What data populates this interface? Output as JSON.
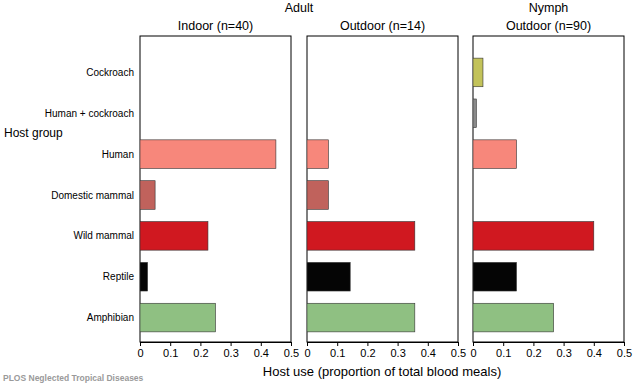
{
  "chart_data": {
    "type": "bar",
    "orientation": "horizontal",
    "ylabel": "Host group",
    "xlabel": "Host use (proportion of total blood meals)",
    "categories": [
      "Cockroach",
      "Human + cockroach",
      "Human",
      "Domestic mammal",
      "Wild mammal",
      "Reptile",
      "Amphibian"
    ],
    "colors": [
      "#c3c35a",
      "#8a8a8a",
      "#f7877b",
      "#c0625c",
      "#d01820",
      "#050505",
      "#8fc082"
    ],
    "xlim": [
      0,
      0.5
    ],
    "xticks": [
      0,
      0.1,
      0.2,
      0.3,
      0.4,
      0.5
    ],
    "stages": [
      {
        "name": "Adult",
        "panels": [
          {
            "title": "Indoor (n=40)",
            "values": [
              0,
              0,
              0.45,
              0.05,
              0.225,
              0.025,
              0.25
            ]
          },
          {
            "title": "Outdoor (n=14)",
            "values": [
              0,
              0,
              0.071,
              0.071,
              0.357,
              0.143,
              0.357
            ]
          }
        ]
      },
      {
        "name": "Nymph",
        "panels": [
          {
            "title": "Outdoor (n=90)",
            "values": [
              0.033,
              0.011,
              0.144,
              0,
              0.4,
              0.144,
              0.267
            ]
          }
        ]
      }
    ],
    "annotations": [
      "PLOS Neglected Tropical Diseases"
    ]
  }
}
